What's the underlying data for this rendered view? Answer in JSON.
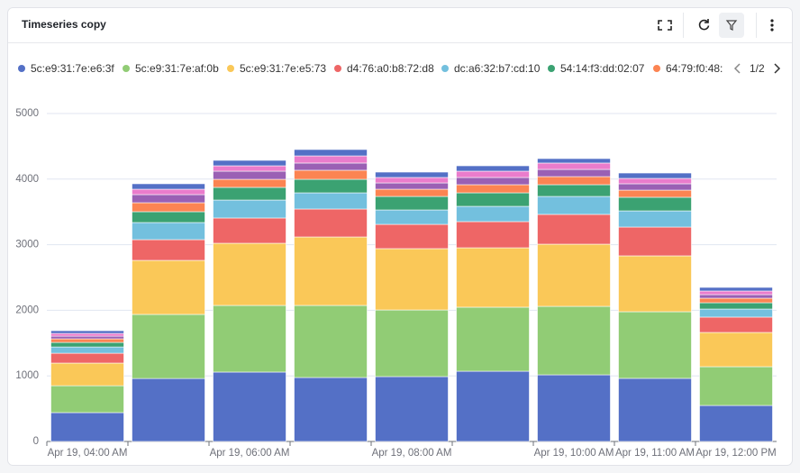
{
  "chart_data": {
    "type": "stacked_bar",
    "title": "Timeseries copy",
    "legend_page": "1/2",
    "categories": [
      "Apr 19, 04:00 AM",
      null,
      "Apr 19, 06:00 AM",
      null,
      "Apr 19, 08:00 AM",
      null,
      "Apr 19, 10:00 AM",
      "Apr 19, 11:00 AM",
      "Apr 19, 12:00 PM"
    ],
    "ylim": [
      0,
      5000
    ],
    "yticks": [
      0,
      1000,
      2000,
      3000,
      4000,
      5000
    ],
    "grid": true,
    "legend": "top",
    "series": [
      {
        "name": "5c:e9:31:7e:e6:3f",
        "color": "#5470c6",
        "values": [
          440,
          960,
          1058,
          975,
          989,
          1071,
          1016,
          962,
          549
        ]
      },
      {
        "name": "5c:e9:31:7e:af:0b",
        "color": "#91cc75",
        "values": [
          410,
          977,
          1016,
          1099,
          1016,
          976,
          1044,
          1016,
          591
        ]
      },
      {
        "name": "5c:e9:31:7e:e5:73",
        "color": "#fac858",
        "values": [
          345,
          824,
          948,
          1044,
          935,
          906,
          948,
          852,
          522
        ]
      },
      {
        "name": "d4:76:a0:b8:72:d8",
        "color": "#ee6666",
        "values": [
          150,
          316,
          385,
          426,
          370,
          399,
          454,
          439,
          234
        ]
      },
      {
        "name": "dc:a6:32:b7:cd:10",
        "color": "#73c0de",
        "values": [
          96,
          261,
          274,
          247,
          220,
          233,
          274,
          247,
          123
        ]
      },
      {
        "name": "54:14:f3:dd:02:07",
        "color": "#3ba272",
        "values": [
          69,
          165,
          193,
          206,
          206,
          206,
          179,
          207,
          96
        ]
      },
      {
        "name": "64:79:f0:48:",
        "color": "#fc8452",
        "values": [
          55,
          137,
          123,
          138,
          110,
          124,
          123,
          109,
          69
        ]
      },
      {
        "color": "#9a60b4",
        "values": [
          41,
          124,
          124,
          110,
          96,
          110,
          110,
          97,
          55
        ]
      },
      {
        "color": "#ea7ccc",
        "values": [
          41,
          82,
          82,
          109,
          83,
          96,
          97,
          82,
          55
        ]
      },
      {
        "color": "#5470c6",
        "values": [
          42,
          83,
          83,
          97,
          82,
          82,
          68,
          82,
          55
        ]
      }
    ]
  }
}
